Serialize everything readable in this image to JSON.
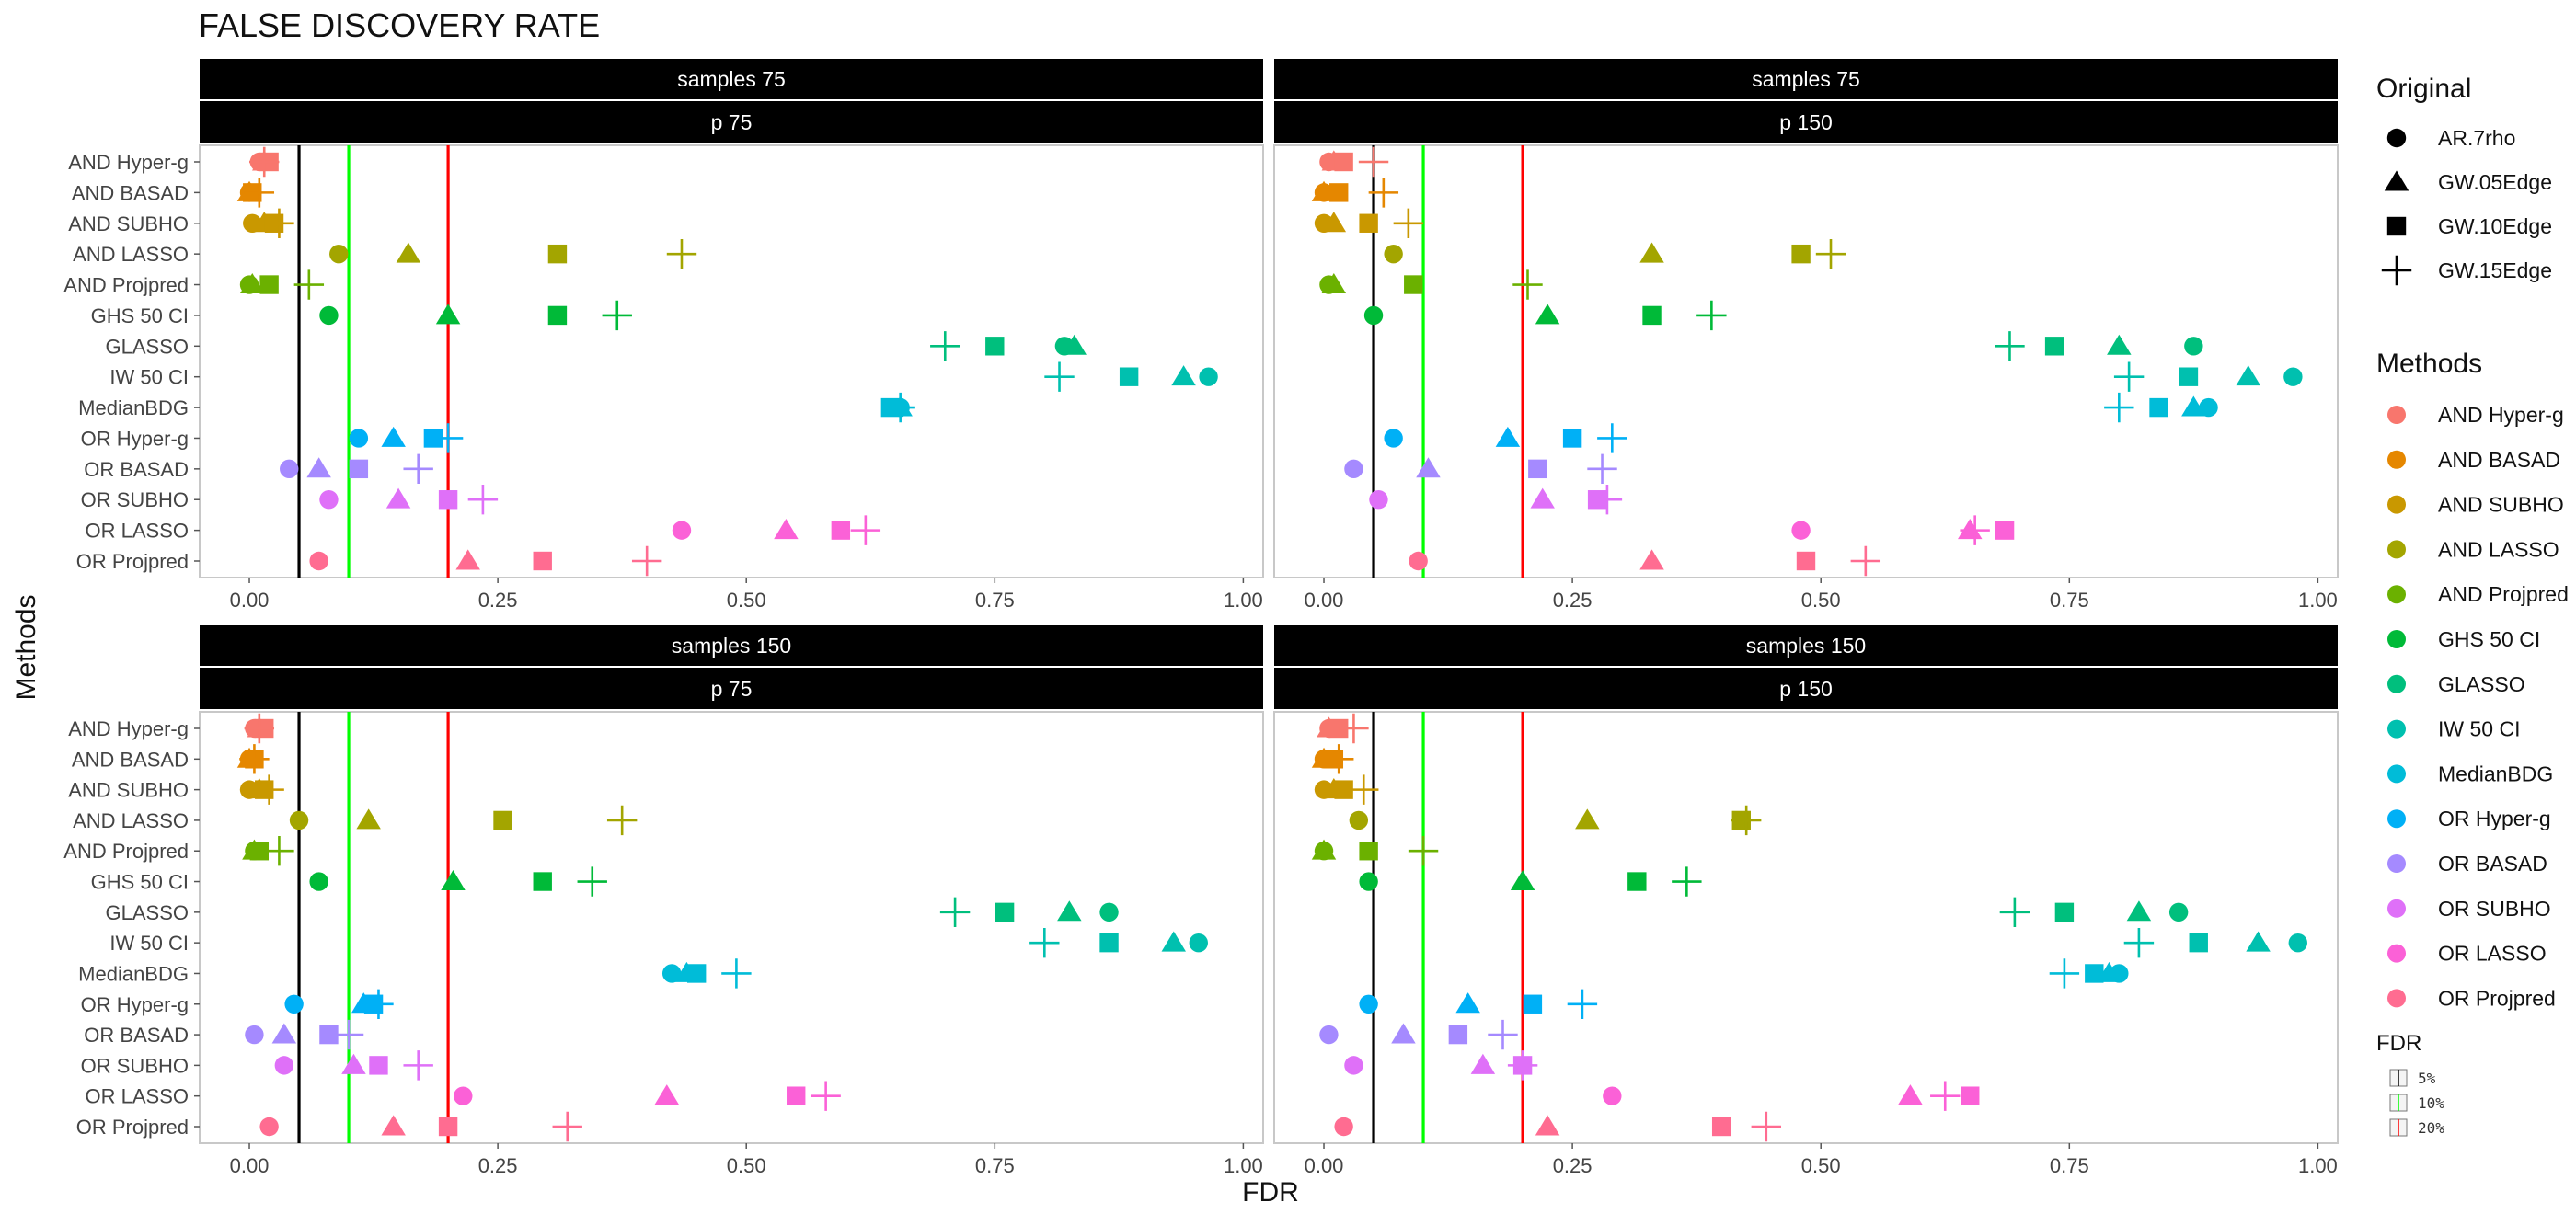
{
  "chart_data": {
    "type": "scatter",
    "title": "FALSE DISCOVERY RATE",
    "xlabel": "FDR",
    "ylabel": "Methods",
    "xlim": [
      -0.05,
      1.02
    ],
    "x_ticks": [
      0.0,
      0.25,
      0.5,
      0.75,
      1.0
    ],
    "x_tick_labels": [
      "0.00",
      "0.25",
      "0.50",
      "0.75",
      "1.00"
    ],
    "methods": [
      "AND Hyper-g",
      "AND BASAD",
      "AND SUBHO",
      "AND LASSO",
      "AND Projpred",
      "GHS 50 CI",
      "GLASSO",
      "IW 50 CI",
      "MedianBDG",
      "OR Hyper-g",
      "OR BASAD",
      "OR SUBHO",
      "OR LASSO",
      "OR Projpred"
    ],
    "method_colors": {
      "AND Hyper-g": "#F8766D",
      "AND BASAD": "#E58700",
      "AND SUBHO": "#C99800",
      "AND LASSO": "#A3A500",
      "AND Projpred": "#6BB100",
      "GHS 50 CI": "#00BA38",
      "GLASSO": "#00BF7D",
      "IW 50 CI": "#00C0AF",
      "MedianBDG": "#00BCD8",
      "OR Hyper-g": "#00B0F6",
      "OR BASAD": "#A58AFF",
      "OR SUBHO": "#DF70F8",
      "OR LASSO": "#FB61D7",
      "OR Projpred": "#FF6C91"
    },
    "shapes": [
      "AR.7rho",
      "GW.05Edge",
      "GW.10Edge",
      "GW.15Edge"
    ],
    "shape_symbols": [
      "circle",
      "triangle",
      "square",
      "plus"
    ],
    "legend": {
      "original_title": "Original",
      "methods_title": "Methods",
      "fdr_title": "FDR",
      "fdr_items": [
        {
          "label": "5%",
          "color": "#000000",
          "x": 0.05
        },
        {
          "label": "10%",
          "color": "#00FF00",
          "x": 0.1
        },
        {
          "label": "20%",
          "color": "#FF0000",
          "x": 0.2
        }
      ]
    },
    "panels": [
      {
        "strip_top": "samples 75",
        "strip_bottom": "p 75",
        "points": [
          [
            0.01,
            0.015,
            0.02,
            0.015
          ],
          [
            0.0,
            0.0,
            0.003,
            0.01
          ],
          [
            0.003,
            0.015,
            0.025,
            0.03
          ],
          [
            0.09,
            0.16,
            0.31,
            0.435
          ],
          [
            0.0,
            0.003,
            0.02,
            0.06
          ],
          [
            0.08,
            0.2,
            0.31,
            0.37
          ],
          [
            0.82,
            0.83,
            0.75,
            0.7
          ],
          [
            0.965,
            0.94,
            0.885,
            0.815
          ],
          [
            0.655,
            0.655,
            0.645,
            0.655
          ],
          [
            0.11,
            0.145,
            0.185,
            0.2
          ],
          [
            0.04,
            0.07,
            0.11,
            0.17
          ],
          [
            0.08,
            0.15,
            0.2,
            0.235
          ],
          [
            0.435,
            0.54,
            0.595,
            0.62
          ],
          [
            0.07,
            0.22,
            0.295,
            0.4
          ]
        ]
      },
      {
        "strip_top": "samples 75",
        "strip_bottom": "p 150",
        "points": [
          [
            0.005,
            0.01,
            0.02,
            0.05
          ],
          [
            0.0,
            0.0,
            0.015,
            0.06
          ],
          [
            0.0,
            0.01,
            0.045,
            0.085
          ],
          [
            0.07,
            0.33,
            0.48,
            0.51
          ],
          [
            0.005,
            0.01,
            0.09,
            0.205
          ],
          [
            0.05,
            0.225,
            0.33,
            0.39
          ],
          [
            0.875,
            0.8,
            0.735,
            0.69
          ],
          [
            0.975,
            0.93,
            0.87,
            0.81
          ],
          [
            0.89,
            0.875,
            0.84,
            0.8
          ],
          [
            0.07,
            0.185,
            0.25,
            0.29
          ],
          [
            0.03,
            0.105,
            0.215,
            0.28
          ],
          [
            0.055,
            0.22,
            0.275,
            0.285
          ],
          [
            0.48,
            0.65,
            0.685,
            0.655
          ],
          [
            0.095,
            0.33,
            0.485,
            0.545
          ]
        ]
      },
      {
        "strip_top": "samples 150",
        "strip_bottom": "p 75",
        "points": [
          [
            0.005,
            0.01,
            0.015,
            0.01
          ],
          [
            0.0,
            0.0,
            0.005,
            0.005
          ],
          [
            0.0,
            0.01,
            0.015,
            0.02
          ],
          [
            0.05,
            0.12,
            0.255,
            0.375
          ],
          [
            0.005,
            0.005,
            0.01,
            0.03
          ],
          [
            0.07,
            0.205,
            0.295,
            0.345
          ],
          [
            0.865,
            0.825,
            0.76,
            0.71
          ],
          [
            0.955,
            0.93,
            0.865,
            0.8
          ],
          [
            0.425,
            0.44,
            0.45,
            0.49
          ],
          [
            0.045,
            0.115,
            0.125,
            0.13
          ],
          [
            0.005,
            0.035,
            0.08,
            0.1
          ],
          [
            0.035,
            0.105,
            0.13,
            0.17
          ],
          [
            0.215,
            0.42,
            0.55,
            0.58
          ],
          [
            0.02,
            0.145,
            0.2,
            0.32
          ]
        ]
      },
      {
        "strip_top": "samples 150",
        "strip_bottom": "p 150",
        "points": [
          [
            0.005,
            0.005,
            0.015,
            0.03
          ],
          [
            0.0,
            0.0,
            0.01,
            0.015
          ],
          [
            0.0,
            0.01,
            0.02,
            0.04
          ],
          [
            0.035,
            0.265,
            0.42,
            0.425
          ],
          [
            0.0,
            0.0,
            0.045,
            0.1
          ],
          [
            0.045,
            0.2,
            0.315,
            0.365
          ],
          [
            0.86,
            0.82,
            0.745,
            0.695
          ],
          [
            0.98,
            0.94,
            0.88,
            0.82
          ],
          [
            0.8,
            0.79,
            0.775,
            0.745
          ],
          [
            0.045,
            0.145,
            0.21,
            0.26
          ],
          [
            0.005,
            0.08,
            0.135,
            0.18
          ],
          [
            0.03,
            0.16,
            0.2,
            0.2
          ],
          [
            0.29,
            0.59,
            0.65,
            0.625
          ],
          [
            0.02,
            0.225,
            0.4,
            0.445
          ]
        ]
      }
    ]
  }
}
